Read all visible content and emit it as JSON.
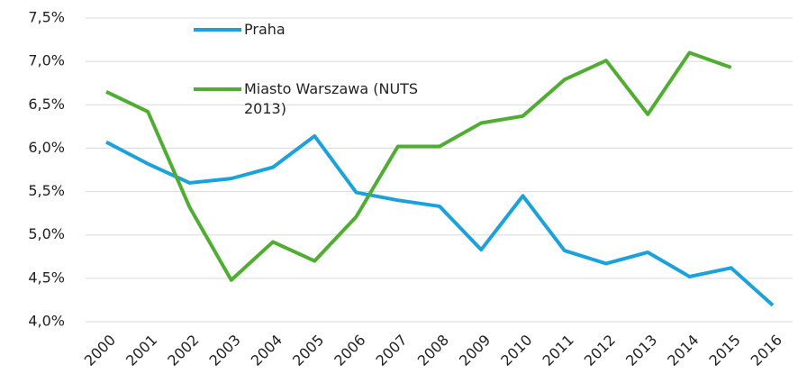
{
  "chart_data": {
    "type": "line",
    "categories": [
      "2000",
      "2001",
      "2002",
      "2003",
      "2004",
      "2005",
      "2006",
      "2007",
      "2008",
      "2009",
      "2010",
      "2011",
      "2012",
      "2013",
      "2014",
      "2015",
      "2016"
    ],
    "series": [
      {
        "name": "Praha",
        "color": "#1ba1dc",
        "values": [
          6.07,
          5.82,
          5.6,
          5.65,
          5.78,
          6.14,
          5.49,
          5.4,
          5.33,
          4.83,
          5.45,
          4.82,
          4.67,
          4.8,
          4.52,
          4.62,
          4.19
        ]
      },
      {
        "name": "Miasto Warszawa (NUTS 2013)",
        "color": "#4fae32",
        "values": [
          6.65,
          6.42,
          5.32,
          4.48,
          4.92,
          4.7,
          5.21,
          6.02,
          6.02,
          6.29,
          6.37,
          6.79,
          7.01,
          6.39,
          7.1,
          6.93,
          null
        ]
      }
    ],
    "ylim": [
      4.0,
      7.5
    ],
    "yticks": [
      {
        "value": 4.0,
        "label": "4,0%"
      },
      {
        "value": 4.5,
        "label": "4,5%"
      },
      {
        "value": 5.0,
        "label": "5,0%"
      },
      {
        "value": 5.5,
        "label": "5,5%"
      },
      {
        "value": 6.0,
        "label": "6,0%"
      },
      {
        "value": 6.5,
        "label": "6,5%"
      },
      {
        "value": 7.0,
        "label": "7,0%"
      },
      {
        "value": 7.5,
        "label": "7,5%"
      }
    ],
    "grid": true
  }
}
